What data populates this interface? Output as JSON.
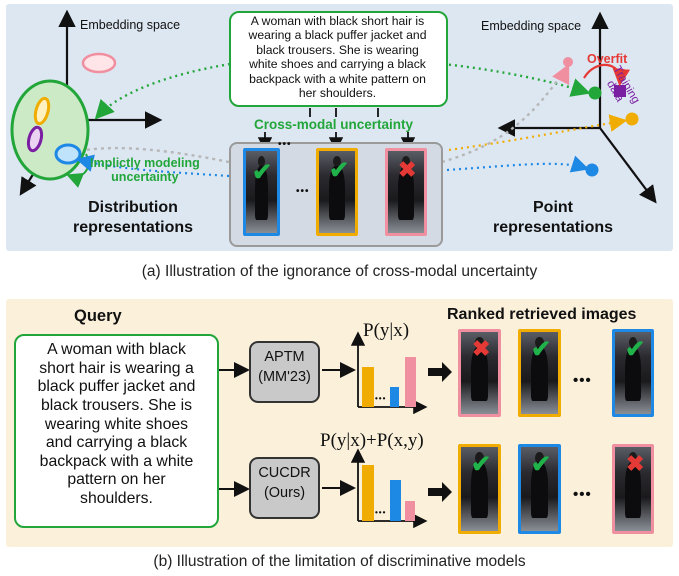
{
  "panel_a": {
    "embedding_label_left": "Embedding space",
    "embedding_label_right": "Embedding space",
    "query_text_lines": [
      "A woman with black short hair is",
      "wearing a black puffer jacket and",
      "black trousers. She is wearing",
      "white shoes and carrying a black",
      "backpack with a white pattern on",
      "her shoulders."
    ],
    "cross_modal_label": "Cross-modal uncertainty",
    "implicit_label_lines": [
      "Implictly modeling",
      "uncertainty"
    ],
    "overfit_label": "Overfit",
    "training_data_lines": [
      "Training",
      "data"
    ],
    "left_title_lines": [
      "Distribution",
      "representations"
    ],
    "right_title_lines": [
      "Point",
      "representations"
    ],
    "ellipsis": "•••",
    "caption": "(a) Illustration of the ignorance of cross-modal uncertainty",
    "colors": {
      "green": "#22a63a",
      "red": "#e53935",
      "purple": "#7b1fa2",
      "orange": "#f0ac00",
      "blue": "#1e88e5",
      "pink": "#f08fa0"
    }
  },
  "panel_b": {
    "query_title": "Query",
    "query_text_lines": [
      "A woman with black",
      "short hair is wearing a",
      "black puffer jacket and",
      "black trousers. She is",
      "wearing white shoes",
      "and carrying a black",
      "backpack with a white",
      "pattern on her",
      "shoulders."
    ],
    "ranked_title": "Ranked retrieved images",
    "model1_lines": [
      "APTM",
      "(MM'23)"
    ],
    "model2_lines": [
      "CUCDR",
      "(Ours)"
    ],
    "formula1": "P(y|x)",
    "formula2": "P(y|x)+P(x,y)",
    "ellipsis": "•••",
    "caption": "(b) Illustration of the limitation of discriminative models"
  }
}
